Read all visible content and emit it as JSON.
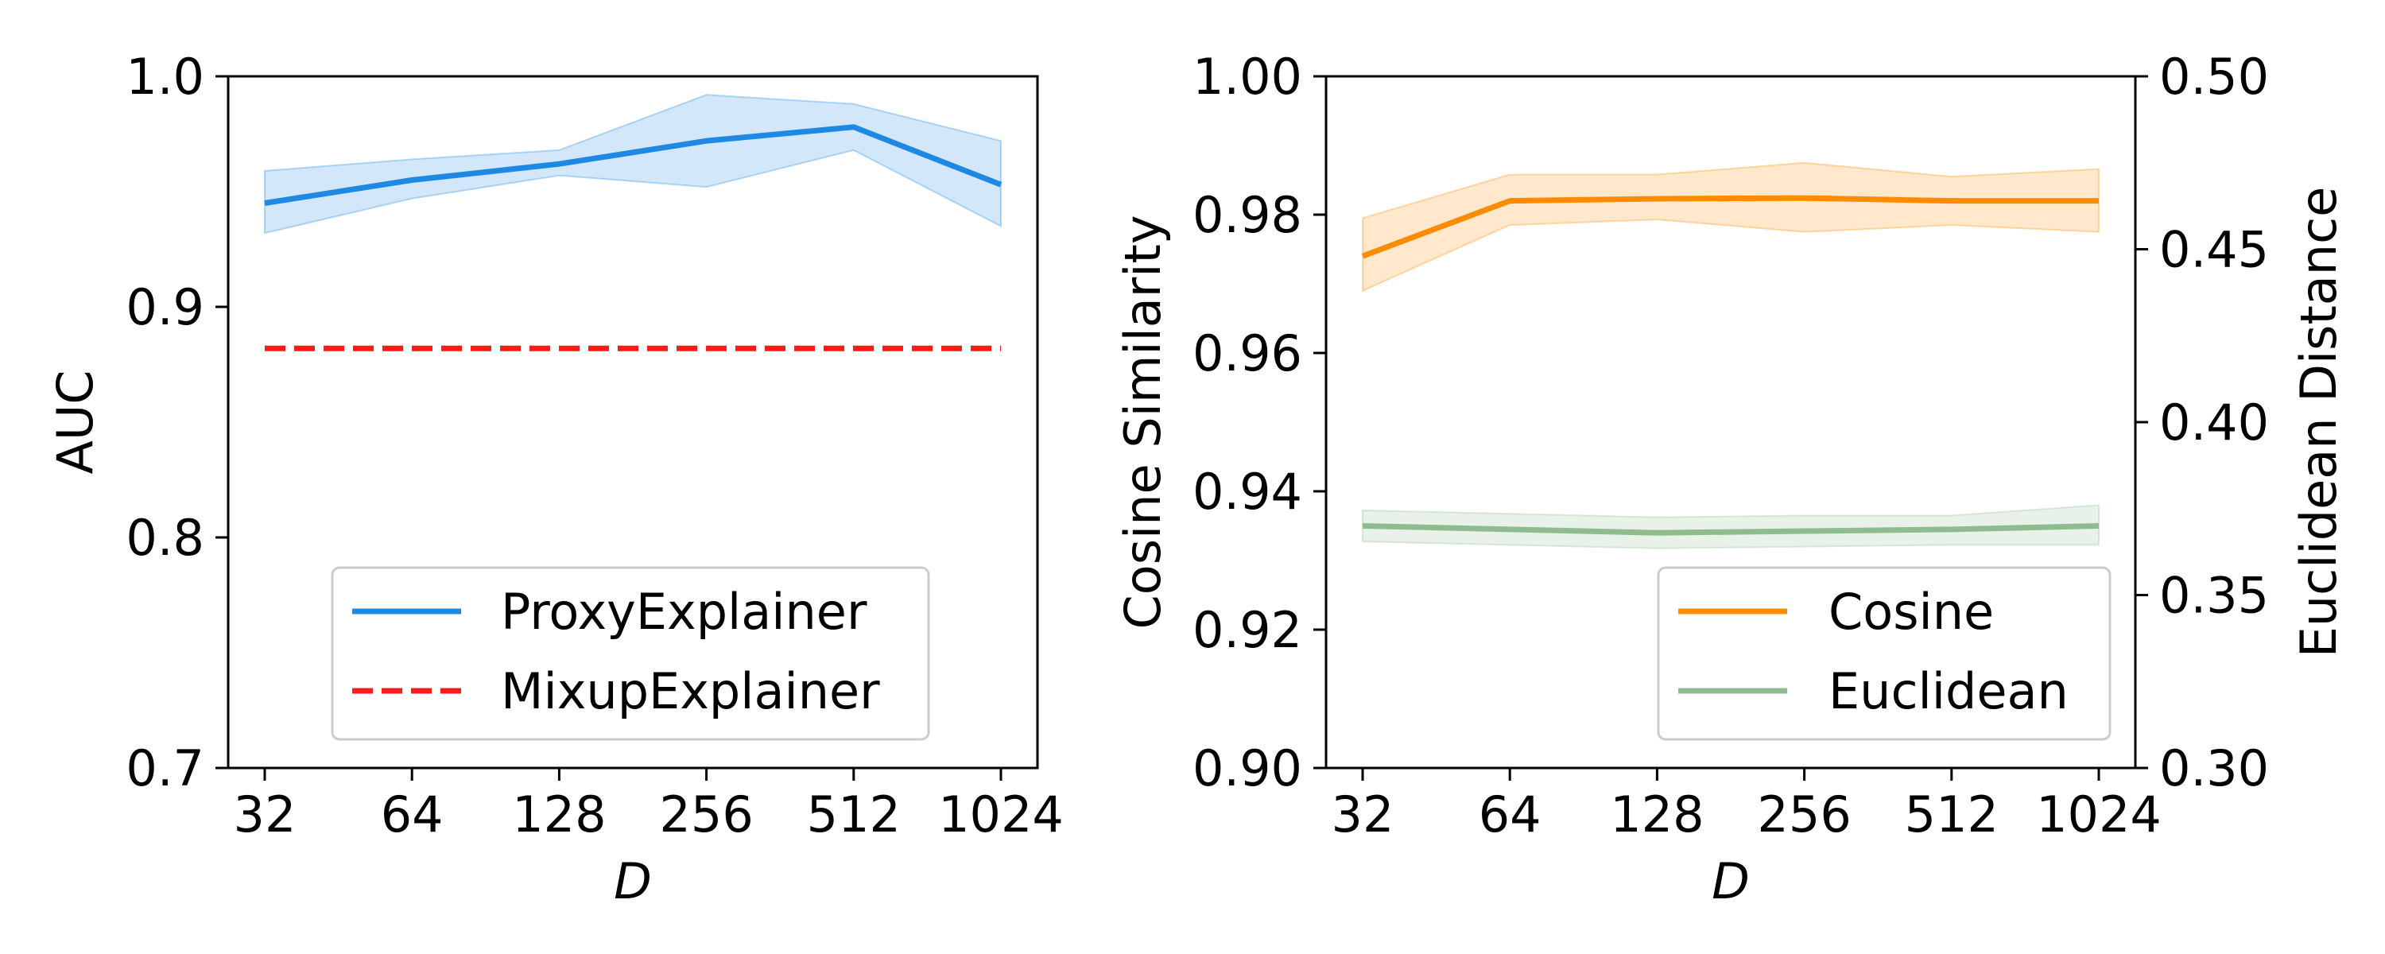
{
  "chart_data": [
    {
      "type": "line",
      "xlabel": "D",
      "ylabel": "AUC",
      "categories": [
        "32",
        "64",
        "128",
        "256",
        "512",
        "1024"
      ],
      "ylim": [
        0.7,
        1.0
      ],
      "yticks": [
        "0.7",
        "0.8",
        "0.9",
        "1.0"
      ],
      "legend_position": "lower-right",
      "grid": false,
      "series": [
        {
          "name": "ProxyExplainer",
          "color": "#1e88e5",
          "style": "solid",
          "values": [
            0.945,
            0.955,
            0.962,
            0.972,
            0.978,
            0.953
          ],
          "band_upper": [
            0.959,
            0.964,
            0.968,
            0.992,
            0.988,
            0.972
          ],
          "band_lower": [
            0.932,
            0.947,
            0.957,
            0.952,
            0.968,
            0.935
          ]
        },
        {
          "name": "MixupExplainer",
          "color": "#ff1a1a",
          "style": "dashed",
          "values": [
            0.882,
            0.882,
            0.882,
            0.882,
            0.882,
            0.882
          ]
        }
      ]
    },
    {
      "type": "line",
      "xlabel": "D",
      "ylabel": "Cosine Similarity",
      "ylabel_right": "Euclidean Distance",
      "categories": [
        "32",
        "64",
        "128",
        "256",
        "512",
        "1024"
      ],
      "ylim": [
        0.9,
        1.0
      ],
      "ylim_right": [
        0.3,
        0.5
      ],
      "yticks": [
        "0.90",
        "0.92",
        "0.94",
        "0.96",
        "0.98",
        "1.00"
      ],
      "yticks_right": [
        "0.30",
        "0.35",
        "0.40",
        "0.45",
        "0.50"
      ],
      "legend_position": "lower-right",
      "grid": false,
      "series": [
        {
          "name": "Cosine",
          "axis": "left",
          "color": "#ff8c00",
          "style": "solid",
          "values": [
            0.974,
            0.982,
            0.9823,
            0.9824,
            0.982,
            0.982
          ],
          "band_upper": [
            0.9795,
            0.9858,
            0.9858,
            0.9875,
            0.9855,
            0.9866
          ],
          "band_lower": [
            0.969,
            0.9785,
            0.9793,
            0.9775,
            0.9785,
            0.9775
          ]
        },
        {
          "name": "Euclidean",
          "axis": "right",
          "color": "#8fbc8f",
          "style": "solid",
          "values": [
            0.37,
            0.369,
            0.368,
            0.3685,
            0.369,
            0.37
          ],
          "band_upper": [
            0.3745,
            0.3735,
            0.3725,
            0.373,
            0.373,
            0.376
          ],
          "band_lower": [
            0.3655,
            0.3645,
            0.3635,
            0.364,
            0.3645,
            0.3645
          ]
        }
      ]
    }
  ]
}
